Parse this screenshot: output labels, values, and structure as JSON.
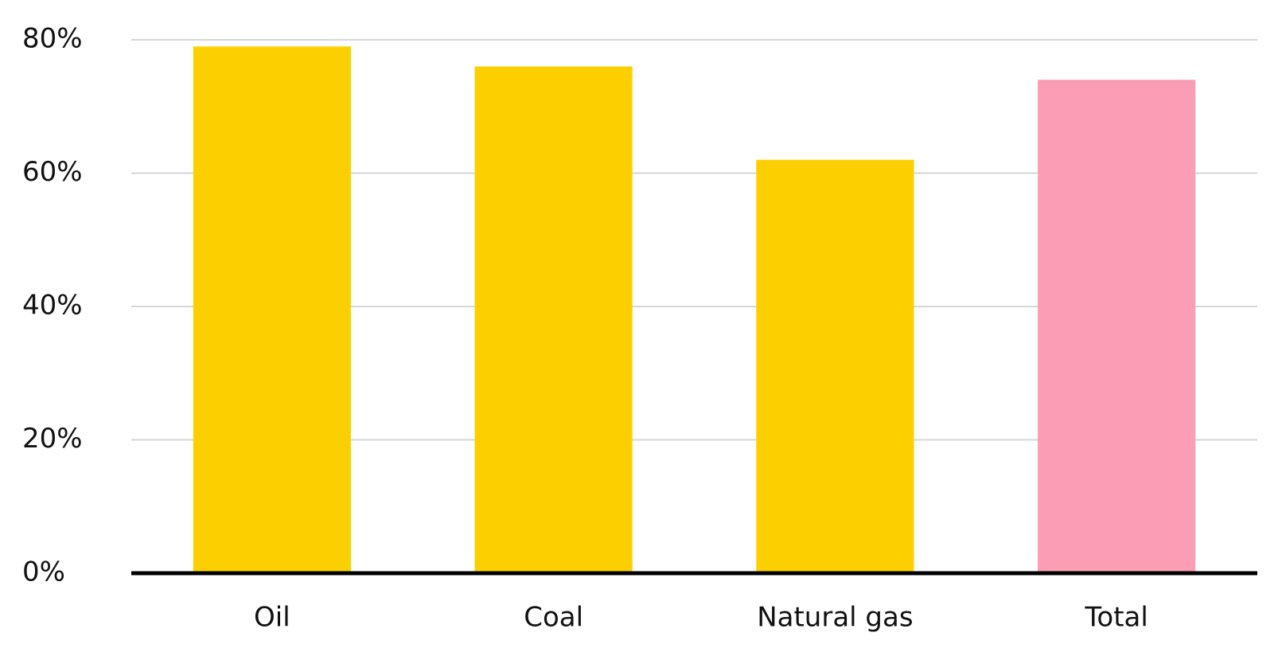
{
  "chart_data": {
    "type": "bar",
    "categories": [
      "Oil",
      "Coal",
      "Natural gas",
      "Total"
    ],
    "values": [
      79,
      76,
      62,
      74
    ],
    "colors": [
      "#fcd000",
      "#fcd000",
      "#fcd000",
      "#fb9db5"
    ],
    "ylim": [
      0,
      80
    ],
    "yticks": [
      {
        "value": 0,
        "label": "0%"
      },
      {
        "value": 20,
        "label": "20%"
      },
      {
        "value": 40,
        "label": "40%"
      },
      {
        "value": 60,
        "label": "60%"
      },
      {
        "value": 80,
        "label": "80%"
      }
    ],
    "grid": true
  }
}
